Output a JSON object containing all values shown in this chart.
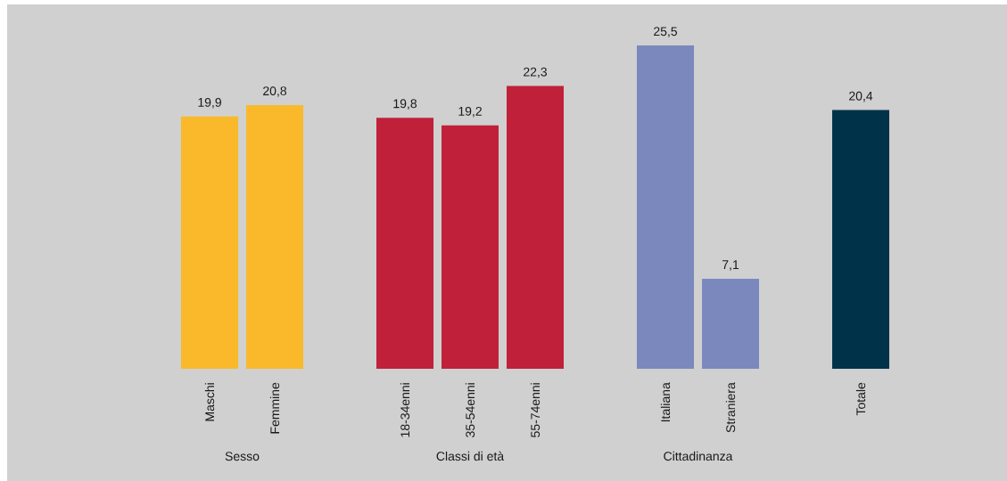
{
  "chart_data": {
    "type": "bar",
    "categories": [
      "Maschi",
      "Femmine",
      null,
      "18-34enni",
      "35-54enni",
      "55-74enni",
      null,
      "Italiana",
      "Straniera",
      null,
      "Totale"
    ],
    "values": [
      19.9,
      20.8,
      null,
      19.8,
      19.2,
      22.3,
      null,
      25.5,
      7.1,
      null,
      20.4
    ],
    "colors": [
      "#f9b92b",
      "#f9b92b",
      null,
      "#c1203a",
      "#c1203a",
      "#c1203a",
      null,
      "#7b88be",
      "#7b88be",
      null,
      "#00324a"
    ],
    "value_labels": [
      "19,9",
      "20,8",
      null,
      "19,8",
      "19,2",
      "22,3",
      null,
      "25,5",
      "7,1",
      null,
      "20,4"
    ],
    "annotations": [
      "Sesso",
      "Classi di età",
      "Cittadinanza"
    ]
  }
}
